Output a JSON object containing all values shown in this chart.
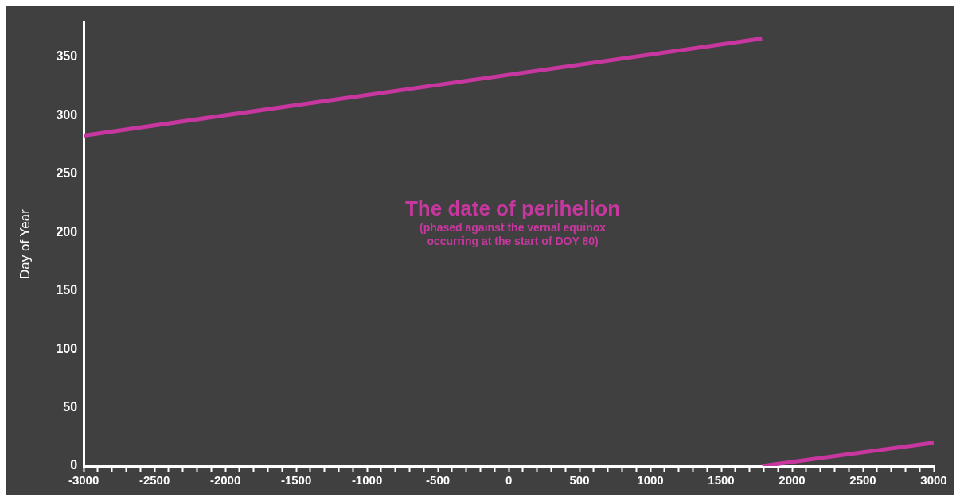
{
  "chart_data": {
    "type": "line",
    "title": "The date of perihelion",
    "subtitle": "(phased against the vernal equinox occurring at the start of DOY 80)",
    "ylabel": "Day of Year",
    "series": [
      {
        "color": "#c8379f",
        "x": [
          -3000,
          1788
        ],
        "values": [
          283,
          366
        ]
      },
      {
        "color": "#c8379f",
        "x": [
          1790,
          3000
        ],
        "values": [
          0,
          20
        ]
      }
    ],
    "xlim": [
      -3000,
      3000
    ],
    "xticks": [
      -3000,
      {
        "value": -2900,
        "label": null
      },
      {
        "value": -2800,
        "label": null
      },
      {
        "value": -2700,
        "label": null
      },
      {
        "value": -2600,
        "label": null
      },
      -2500,
      {
        "value": -2400,
        "label": null
      },
      {
        "value": -2300,
        "label": null
      },
      {
        "value": -2200,
        "label": null
      },
      {
        "value": -2100,
        "label": null
      },
      -2000,
      {
        "value": -1900,
        "label": null
      },
      {
        "value": -1800,
        "label": null
      },
      {
        "value": -1700,
        "label": null
      },
      {
        "value": -1600,
        "label": null
      },
      -1500,
      {
        "value": -1400,
        "label": null
      },
      {
        "value": -1300,
        "label": null
      },
      {
        "value": -1200,
        "label": null
      },
      {
        "value": -1100,
        "label": null
      },
      -1000,
      {
        "value": -900,
        "label": null
      },
      {
        "value": -800,
        "label": null
      },
      {
        "value": -700,
        "label": null
      },
      {
        "value": -600,
        "label": null
      },
      -500,
      {
        "value": -400,
        "label": null
      },
      {
        "value": -300,
        "label": null
      },
      {
        "value": -200,
        "label": null
      },
      {
        "value": -100,
        "label": null
      },
      0,
      {
        "value": 100,
        "label": null
      },
      {
        "value": 200,
        "label": null
      },
      {
        "value": 300,
        "label": null
      },
      {
        "value": 400,
        "label": null
      },
      500,
      {
        "value": 600,
        "label": null
      },
      {
        "value": 700,
        "label": null
      },
      {
        "value": 800,
        "label": null
      },
      {
        "value": 900,
        "label": null
      },
      1000,
      {
        "value": 1100,
        "label": null
      },
      {
        "value": 1200,
        "label": null
      },
      {
        "value": 1300,
        "label": null
      },
      {
        "value": 1400,
        "label": null
      },
      1500,
      {
        "value": 1600,
        "label": null
      },
      {
        "value": 1700,
        "label": null
      },
      {
        "value": 1800,
        "label": null
      },
      {
        "value": 1900,
        "label": null
      },
      2000,
      {
        "value": 2100,
        "label": null
      },
      {
        "value": 2200,
        "label": null
      },
      {
        "value": 2300,
        "label": null
      },
      {
        "value": 2400,
        "label": null
      },
      2500,
      {
        "value": 2600,
        "label": null
      },
      {
        "value": 2700,
        "label": null
      },
      {
        "value": 2800,
        "label": null
      },
      {
        "value": 2900,
        "label": null
      },
      3000
    ],
    "ylim": [
      0,
      380
    ],
    "yticks": [
      0,
      50,
      100,
      150,
      200,
      250,
      300,
      350
    ],
    "grid": false,
    "legend": false,
    "marker": "none",
    "line_style": "solid"
  }
}
